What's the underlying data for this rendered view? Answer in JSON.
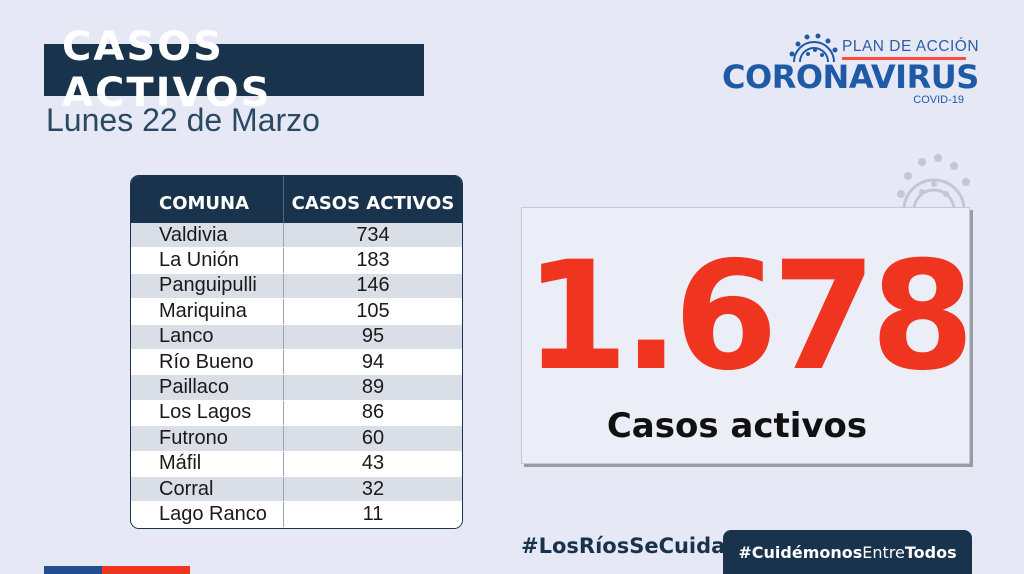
{
  "header": {
    "title": "CASOS ACTIVOS",
    "date": "Lunes 22 de Marzo"
  },
  "logo": {
    "plan": "PLAN DE ACCIÓN",
    "brand": "CORONAVIRUS",
    "sub": "COVID-19"
  },
  "table": {
    "headers": [
      "COMUNA",
      "CASOS ACTIVOS"
    ],
    "rows": [
      {
        "comuna": "Valdivia",
        "casos": "734"
      },
      {
        "comuna": "La Unión",
        "casos": "183"
      },
      {
        "comuna": "Panguipulli",
        "casos": "146"
      },
      {
        "comuna": "Mariquina",
        "casos": "105"
      },
      {
        "comuna": "Lanco",
        "casos": "95"
      },
      {
        "comuna": "Río Bueno",
        "casos": "94"
      },
      {
        "comuna": "Paillaco",
        "casos": "89"
      },
      {
        "comuna": "Los Lagos",
        "casos": "86"
      },
      {
        "comuna": "Futrono",
        "casos": "60"
      },
      {
        "comuna": "Máfil",
        "casos": "43"
      },
      {
        "comuna": "Corral",
        "casos": "32"
      },
      {
        "comuna": "Lago Ranco",
        "casos": "11"
      }
    ]
  },
  "total": {
    "value": "1.678",
    "label": "Casos activos"
  },
  "hashtags": {
    "left": "#LosRíosSeCuida",
    "right_prefix": "#Cuidémonos",
    "right_middle": "Entre",
    "right_suffix": "Todos"
  },
  "colors": {
    "navy": "#18334b",
    "accent_red": "#ef3420",
    "brand_blue": "#1f5aa6",
    "background": "#e6e8f5"
  },
  "icons": [
    "virus-icon"
  ]
}
